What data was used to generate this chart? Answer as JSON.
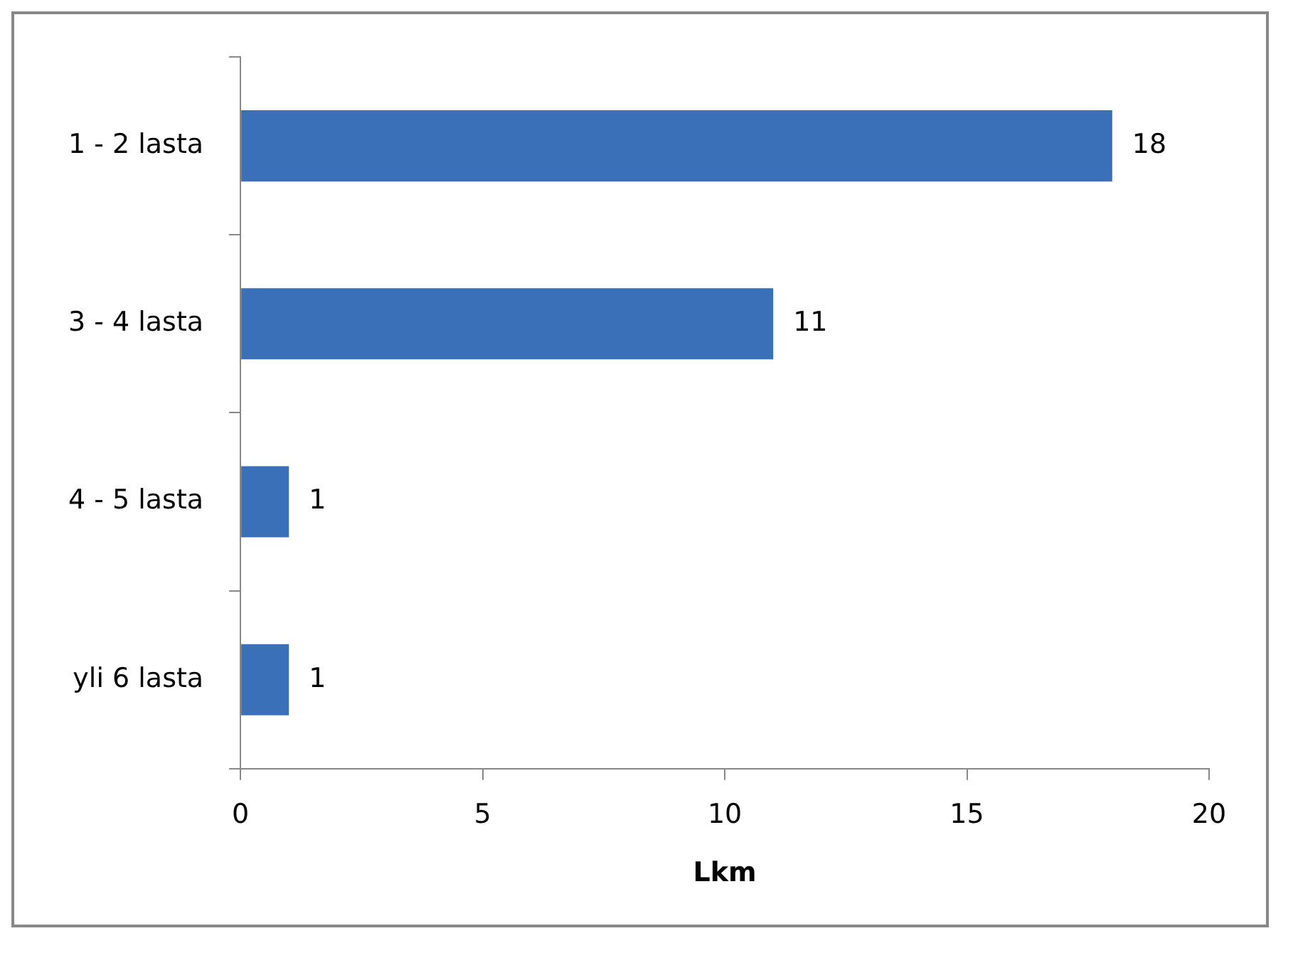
{
  "chart_data": {
    "type": "bar",
    "orientation": "horizontal",
    "xlabel": "Lkm",
    "categories": [
      "1 - 2 lasta",
      "3 - 4 lasta",
      "4 - 5 lasta",
      "yli 6 lasta"
    ],
    "values": [
      18,
      11,
      1,
      1
    ],
    "color": "#3a70b8",
    "xlim": [
      0,
      20
    ],
    "xticks": [
      0,
      5,
      10,
      15,
      20
    ],
    "grid": false,
    "data_labels": true,
    "legend": false
  }
}
